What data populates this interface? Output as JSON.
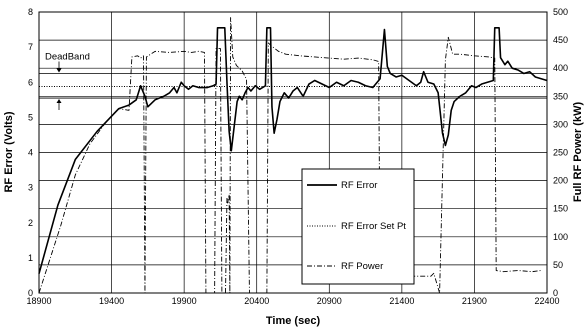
{
  "chart_data": {
    "type": "line",
    "title": "",
    "xlabel": "Time (sec)",
    "ylabel_left": "RF Error (Volts)",
    "ylabel_right": "Full RF Power (kW)",
    "xlim": [
      18900,
      22400
    ],
    "ylim_left": [
      0,
      8
    ],
    "ylim_right": [
      0,
      500
    ],
    "x_ticks": [
      "18900",
      "19400",
      "19900",
      "20400",
      "20900",
      "21400",
      "21900",
      "22400"
    ],
    "y_left_ticks": [
      "0",
      "1",
      "2",
      "3",
      "4",
      "5",
      "6",
      "7",
      "8"
    ],
    "y_right_ticks": [
      "0",
      "50",
      "100",
      "150",
      "200",
      "250",
      "300",
      "350",
      "400",
      "450",
      "500"
    ],
    "grid": "horizontal and vertical",
    "legend_position": "center-right",
    "annotations": [
      {
        "text": "DeadBand",
        "lower": 5.55,
        "upper": 6.25
      }
    ],
    "series": [
      {
        "name": "RF Error",
        "axis": "left",
        "style": "solid",
        "points": [
          [
            18900,
            0.55
          ],
          [
            19030,
            2.5
          ],
          [
            19150,
            3.8
          ],
          [
            19300,
            4.6
          ],
          [
            19450,
            5.25
          ],
          [
            19520,
            5.35
          ],
          [
            19570,
            5.5
          ],
          [
            19600,
            5.9
          ],
          [
            19630,
            5.6
          ],
          [
            19650,
            5.3
          ],
          [
            19700,
            5.5
          ],
          [
            19760,
            5.6
          ],
          [
            19800,
            5.7
          ],
          [
            19830,
            5.85
          ],
          [
            19850,
            5.7
          ],
          [
            19880,
            6.0
          ],
          [
            19900,
            5.9
          ],
          [
            19930,
            5.8
          ],
          [
            19960,
            5.9
          ],
          [
            20000,
            5.85
          ],
          [
            20060,
            5.85
          ],
          [
            20100,
            5.9
          ],
          [
            20120,
            5.95
          ],
          [
            20130,
            7.55
          ],
          [
            20180,
            7.55
          ],
          [
            20195,
            6.0
          ],
          [
            20210,
            4.6
          ],
          [
            20225,
            4.05
          ],
          [
            20245,
            4.75
          ],
          [
            20265,
            5.45
          ],
          [
            20280,
            5.6
          ],
          [
            20300,
            5.5
          ],
          [
            20320,
            5.7
          ],
          [
            20340,
            5.85
          ],
          [
            20360,
            5.75
          ],
          [
            20390,
            5.9
          ],
          [
            20420,
            5.8
          ],
          [
            20440,
            5.85
          ],
          [
            20460,
            5.9
          ],
          [
            20470,
            7.55
          ],
          [
            20495,
            7.55
          ],
          [
            20505,
            5.3
          ],
          [
            20520,
            4.55
          ],
          [
            20540,
            4.95
          ],
          [
            20560,
            5.45
          ],
          [
            20590,
            5.7
          ],
          [
            20620,
            5.55
          ],
          [
            20650,
            5.75
          ],
          [
            20680,
            5.85
          ],
          [
            20720,
            5.6
          ],
          [
            20760,
            5.95
          ],
          [
            20800,
            6.05
          ],
          [
            20850,
            5.95
          ],
          [
            20900,
            5.85
          ],
          [
            20950,
            6.0
          ],
          [
            21000,
            5.9
          ],
          [
            21050,
            6.05
          ],
          [
            21100,
            6.0
          ],
          [
            21150,
            5.9
          ],
          [
            21200,
            5.85
          ],
          [
            21250,
            6.1
          ],
          [
            21280,
            7.5
          ],
          [
            21300,
            6.45
          ],
          [
            21320,
            6.25
          ],
          [
            21360,
            6.15
          ],
          [
            21400,
            6.2
          ],
          [
            21450,
            6.05
          ],
          [
            21500,
            5.9
          ],
          [
            21530,
            6.0
          ],
          [
            21550,
            6.3
          ],
          [
            21580,
            6.0
          ],
          [
            21620,
            5.95
          ],
          [
            21650,
            5.7
          ],
          [
            21680,
            4.55
          ],
          [
            21700,
            4.2
          ],
          [
            21720,
            4.5
          ],
          [
            21740,
            5.2
          ],
          [
            21760,
            5.45
          ],
          [
            21800,
            5.6
          ],
          [
            21840,
            5.7
          ],
          [
            21880,
            5.9
          ],
          [
            21910,
            5.85
          ],
          [
            21950,
            5.95
          ],
          [
            21990,
            6.0
          ],
          [
            22030,
            6.05
          ],
          [
            22040,
            7.55
          ],
          [
            22070,
            7.55
          ],
          [
            22080,
            6.7
          ],
          [
            22110,
            6.5
          ],
          [
            22130,
            6.6
          ],
          [
            22160,
            6.4
          ],
          [
            22200,
            6.35
          ],
          [
            22240,
            6.25
          ],
          [
            22280,
            6.3
          ],
          [
            22320,
            6.15
          ],
          [
            22360,
            6.1
          ],
          [
            22400,
            6.05
          ]
        ]
      },
      {
        "name": "RF Error Set Pt",
        "axis": "left",
        "style": "dotted",
        "points": [
          [
            18900,
            5.88
          ],
          [
            22400,
            5.88
          ]
        ]
      },
      {
        "name": "RF Power",
        "axis": "right",
        "style": "dashdot",
        "points": [
          [
            18900,
            0
          ],
          [
            19050,
            120
          ],
          [
            19150,
            210
          ],
          [
            19250,
            265
          ],
          [
            19350,
            300
          ],
          [
            19400,
            315
          ],
          [
            19450,
            328
          ],
          [
            19520,
            325
          ],
          [
            19540,
            420
          ],
          [
            19580,
            422
          ],
          [
            19600,
            418
          ],
          [
            19620,
            422
          ],
          [
            19630,
            0
          ],
          [
            19640,
            420
          ],
          [
            19700,
            430
          ],
          [
            19800,
            428
          ],
          [
            19900,
            430
          ],
          [
            19950,
            428
          ],
          [
            20000,
            430
          ],
          [
            20040,
            428
          ],
          [
            20050,
            0
          ],
          [
            20110,
            0
          ],
          [
            20120,
            435
          ],
          [
            20150,
            435
          ],
          [
            20160,
            0
          ],
          [
            20185,
            0
          ],
          [
            20195,
            170
          ],
          [
            20200,
            160
          ],
          [
            20210,
            175
          ],
          [
            20215,
            0
          ],
          [
            20220,
            490
          ],
          [
            20235,
            420
          ],
          [
            20260,
            405
          ],
          [
            20300,
            395
          ],
          [
            20330,
            380
          ],
          [
            20350,
            0
          ],
          [
            20470,
            0
          ],
          [
            20480,
            445
          ],
          [
            20500,
            440
          ],
          [
            20550,
            430
          ],
          [
            20600,
            425
          ],
          [
            20700,
            422
          ],
          [
            20800,
            420
          ],
          [
            20900,
            418
          ],
          [
            21000,
            416
          ],
          [
            21100,
            418
          ],
          [
            21200,
            415
          ],
          [
            21240,
            412
          ],
          [
            21250,
            30
          ],
          [
            21600,
            30
          ],
          [
            21620,
            35
          ],
          [
            21660,
            0
          ],
          [
            21700,
            415
          ],
          [
            21720,
            455
          ],
          [
            21750,
            425
          ],
          [
            21800,
            425
          ],
          [
            21900,
            422
          ],
          [
            22000,
            420
          ],
          [
            22040,
            418
          ],
          [
            22050,
            40
          ],
          [
            22100,
            38
          ],
          [
            22200,
            40
          ],
          [
            22300,
            38
          ],
          [
            22360,
            40
          ]
        ]
      }
    ]
  }
}
